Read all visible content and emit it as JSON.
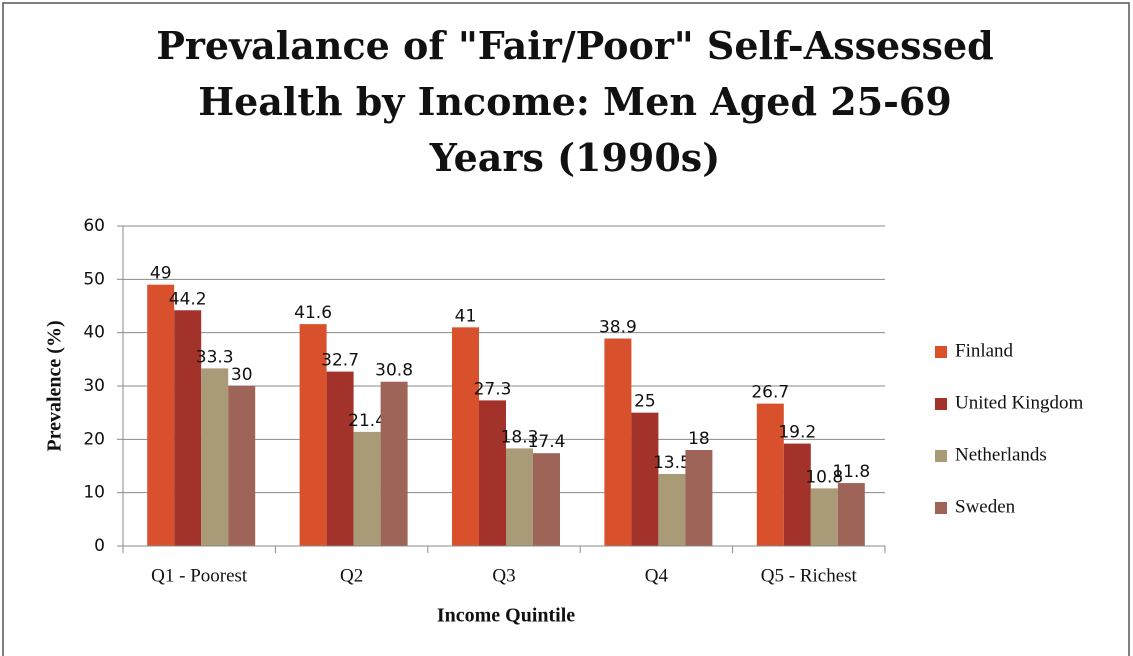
{
  "chart_data": {
    "type": "bar",
    "title": "Prevalance of \"Fair/Poor\" Self-Assessed Health by Income: Men Aged 25-69 Years (1990s)",
    "x_label": "Income Quintile",
    "y_label": "Prevalence (%)",
    "categories": [
      "Q1 - Poorest",
      "Q2",
      "Q3",
      "Q4",
      "Q5 - Richest"
    ],
    "series": [
      {
        "name": "Finland",
        "color": "#d9512c",
        "values": [
          49,
          41.6,
          41,
          38.9,
          26.7
        ]
      },
      {
        "name": "United Kingdom",
        "color": "#a3322a",
        "values": [
          44.2,
          32.7,
          27.3,
          25,
          19.2
        ]
      },
      {
        "name": "Netherlands",
        "color": "#a99a78",
        "values": [
          33.3,
          21.4,
          18.3,
          13.5,
          10.8
        ]
      },
      {
        "name": "Sweden",
        "color": "#9d6457",
        "values": [
          30,
          30.8,
          17.4,
          18,
          11.8
        ]
      }
    ],
    "ylim": [
      0,
      60
    ],
    "yticks": [
      0,
      10,
      20,
      30,
      40,
      50,
      60
    ],
    "grid": true,
    "legend": "right"
  }
}
